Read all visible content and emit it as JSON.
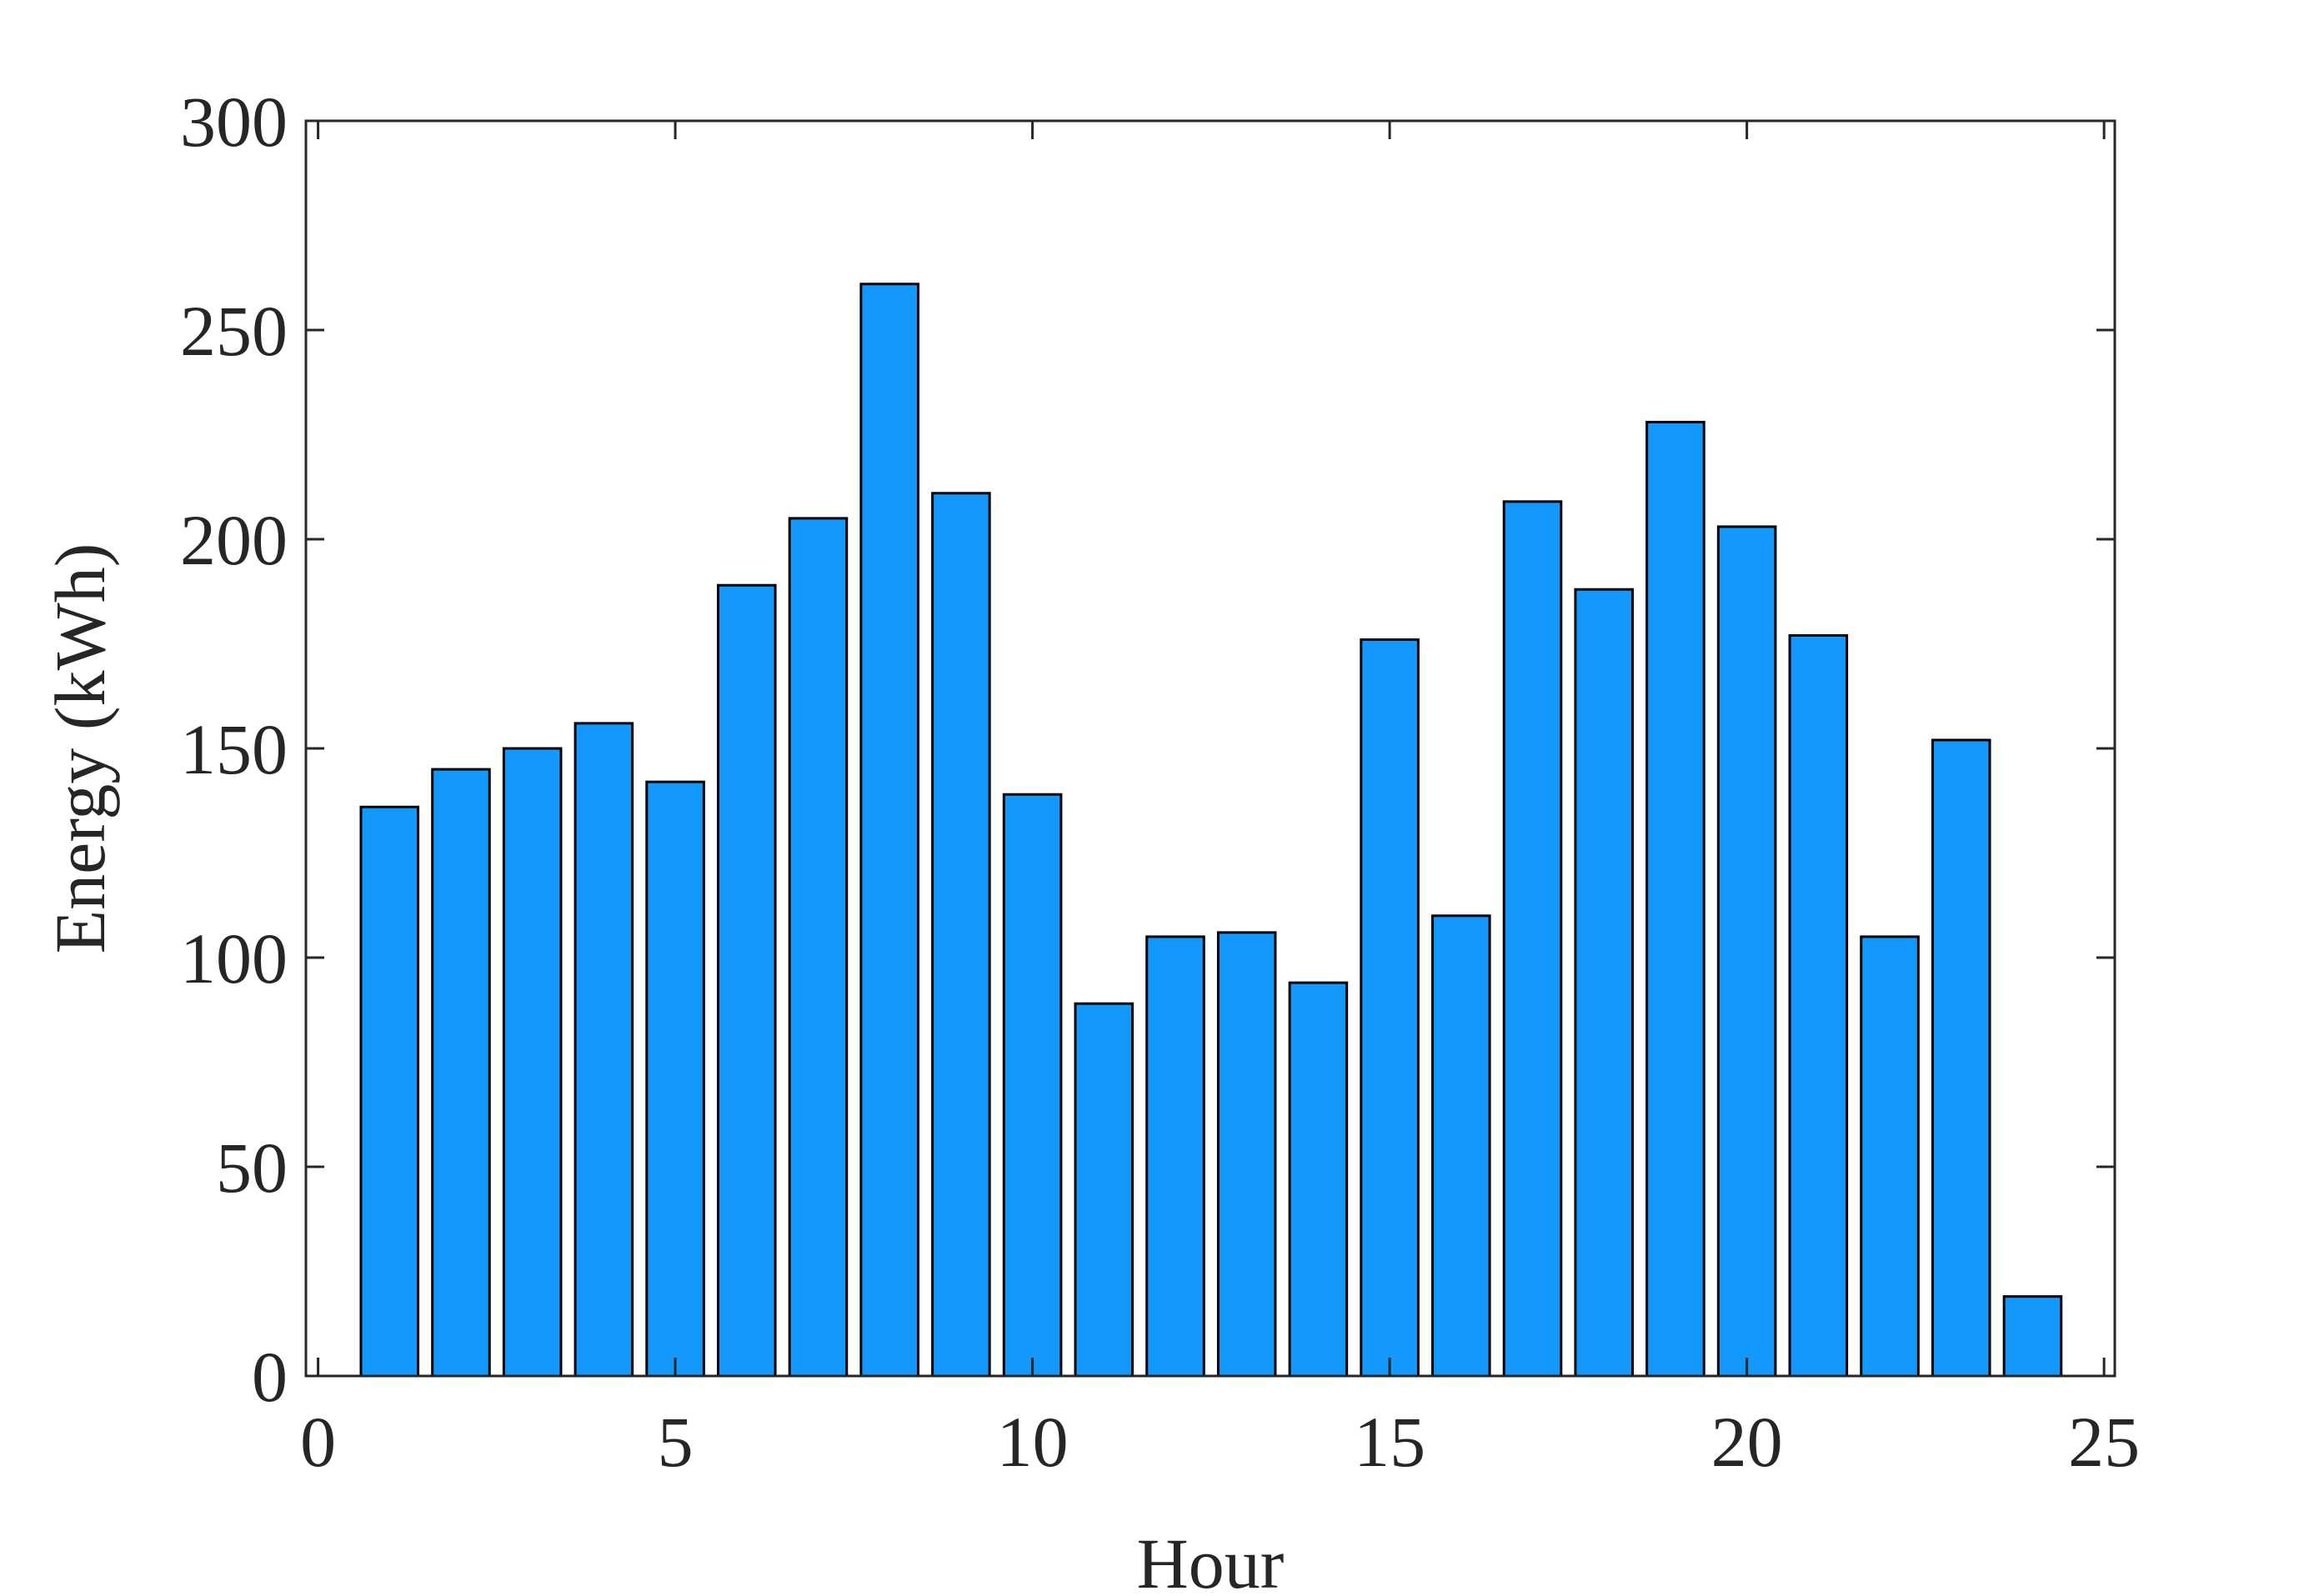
{
  "chart_data": {
    "type": "bar",
    "x_label": "Hour",
    "y_label": "Energy (kWh)",
    "x": [
      1,
      2,
      3,
      4,
      5,
      6,
      7,
      8,
      9,
      10,
      11,
      12,
      13,
      14,
      15,
      16,
      17,
      18,
      19,
      20,
      21,
      22,
      23,
      24
    ],
    "values": [
      136,
      145,
      150,
      156,
      142,
      189,
      205,
      261,
      211,
      139,
      89,
      105,
      106,
      94,
      176,
      110,
      209,
      188,
      228,
      203,
      177,
      105,
      152,
      19
    ],
    "color": "#1399fe",
    "xlim": [
      -0.17,
      25.15
    ],
    "xticks": [
      0,
      5,
      10,
      15,
      20,
      25
    ],
    "ylim": [
      0,
      300
    ],
    "yticks": [
      0,
      50,
      100,
      150,
      200,
      250,
      300
    ]
  }
}
